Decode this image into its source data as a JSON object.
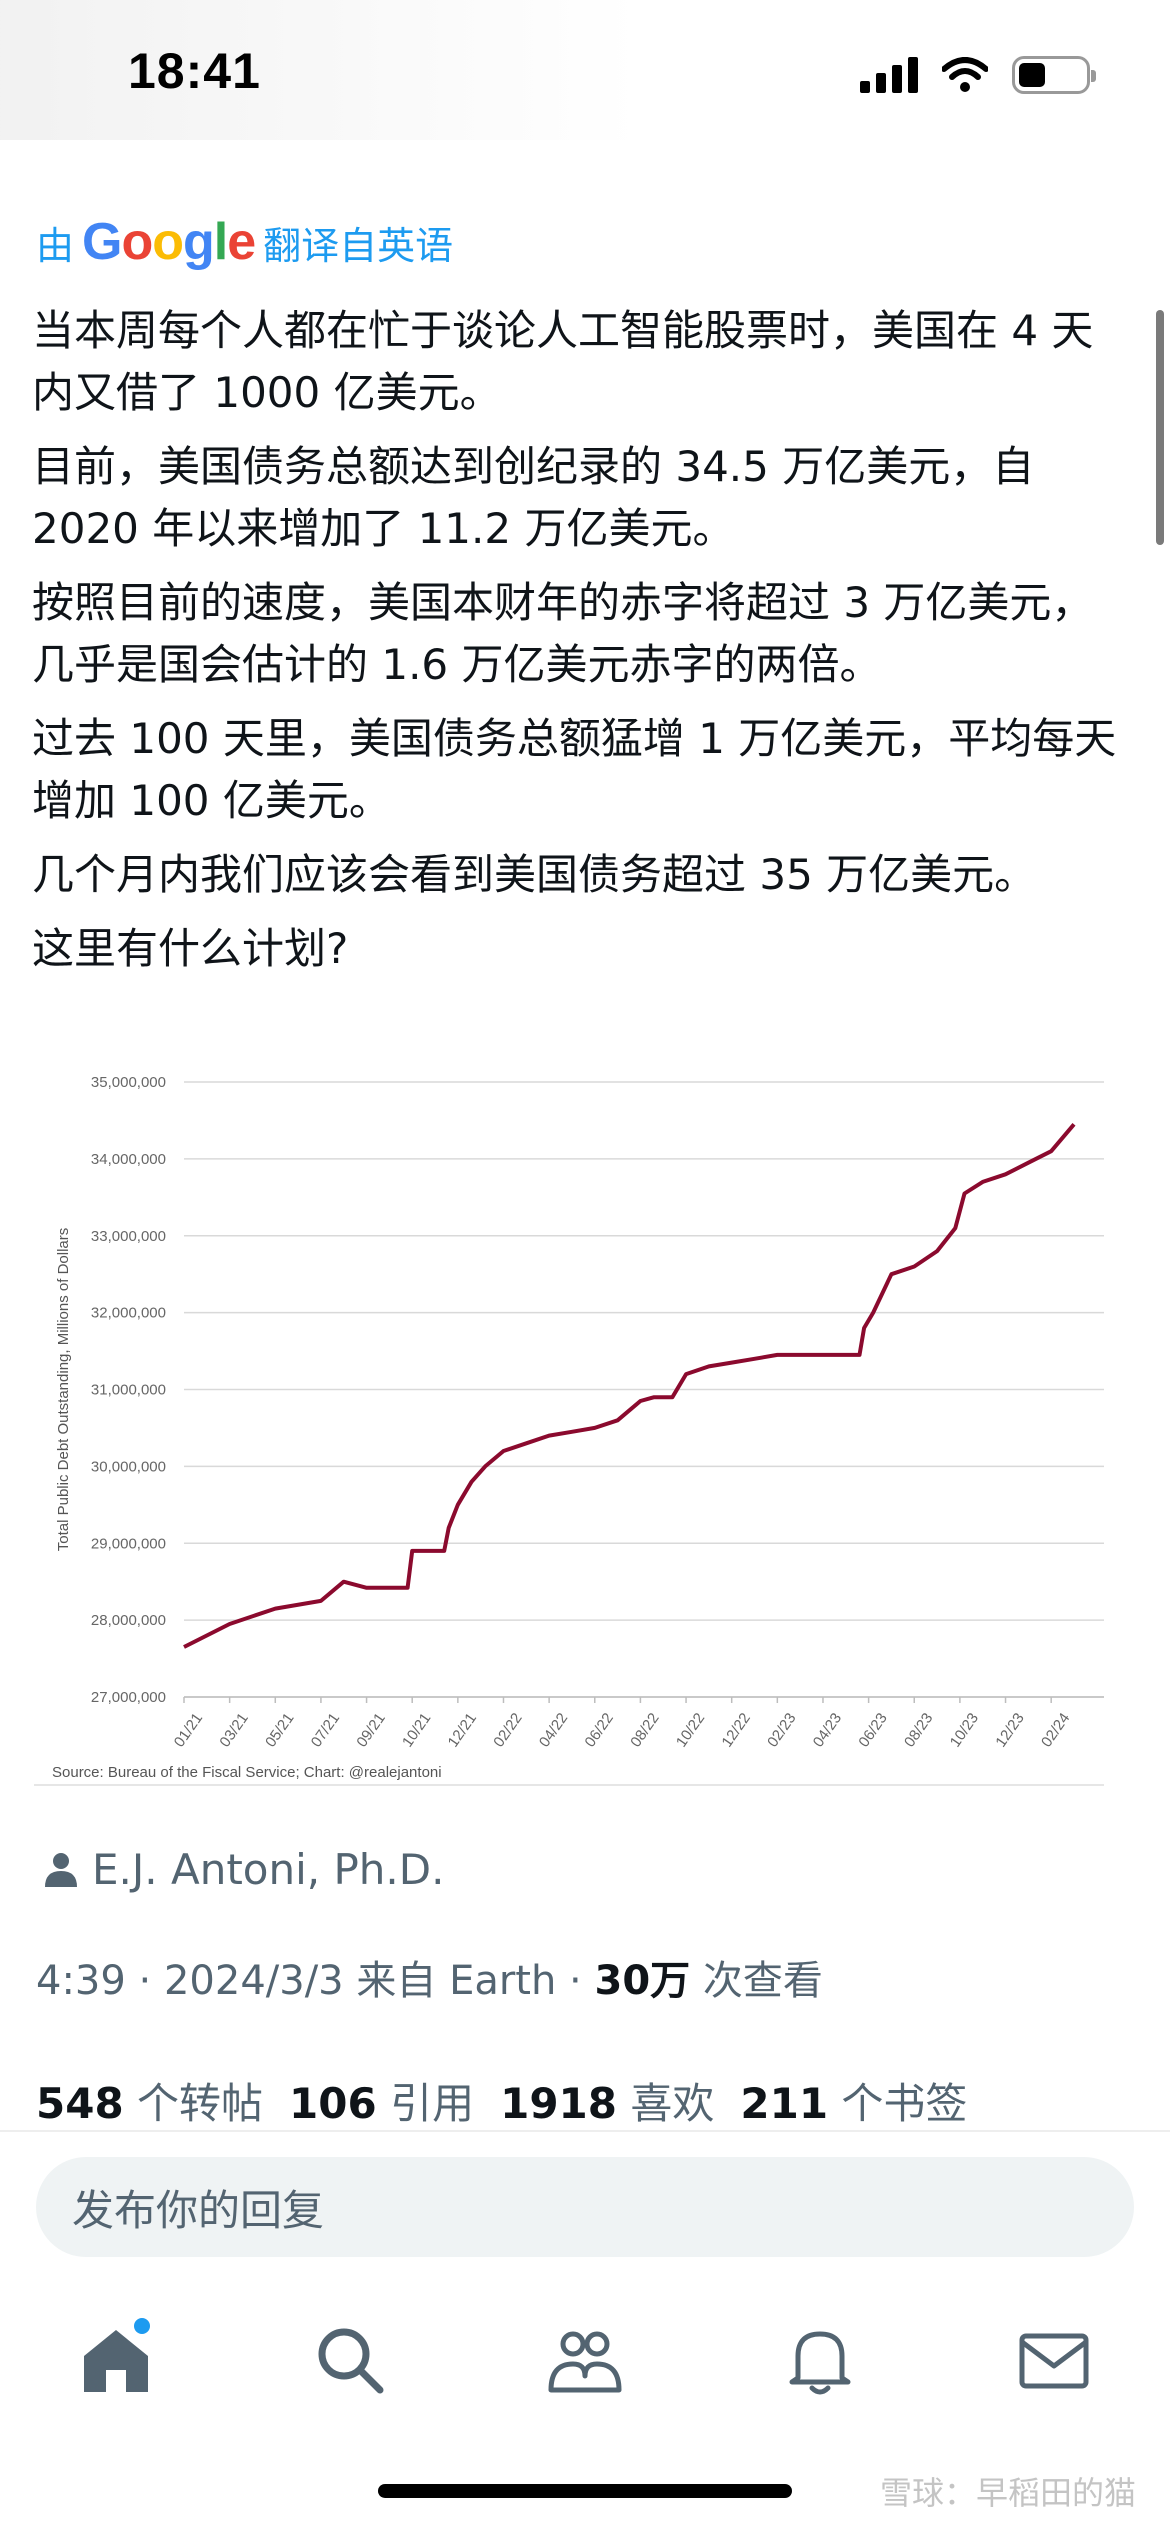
{
  "status_bar": {
    "time": "18:41"
  },
  "translate": {
    "prefix": "由",
    "brand": "Google",
    "suffix": "翻译自英语"
  },
  "tweet": {
    "paragraphs": [
      "当本周每个人都在忙于谈论人工智能股票时，美国在 4 天内又借了 1000 亿美元。",
      "目前，美国债务总额达到创纪录的 34.5 万亿美元，自 2020 年以来增加了 11.2 万亿美元。",
      "按照目前的速度，美国本财年的赤字将超过 3 万亿美元，几乎是国会估计的 1.6 万亿美元赤字的两倍。",
      "过去 100 天里，美国债务总额猛增 1 万亿美元，平均每天增加 100 亿美元。",
      "几个月内我们应该会看到美国债务超过 35 万亿美元。",
      "这里有什么计划?"
    ]
  },
  "chart_data": {
    "type": "line",
    "ylabel": "Total Public Debt Outstanding, Millions of Dollars",
    "source": "Source: Bureau of the Fiscal Service; Chart: @realejantoni",
    "ylim": [
      27000000,
      35000000
    ],
    "y_ticks": [
      "27,000,000",
      "28,000,000",
      "29,000,000",
      "30,000,000",
      "31,000,000",
      "32,000,000",
      "33,000,000",
      "34,000,000",
      "35,000,000"
    ],
    "x_ticks": [
      "01/21",
      "03/21",
      "05/21",
      "07/21",
      "09/21",
      "10/21",
      "12/21",
      "02/22",
      "04/22",
      "06/22",
      "08/22",
      "10/22",
      "12/22",
      "02/23",
      "04/23",
      "06/23",
      "08/23",
      "10/23",
      "12/23",
      "02/24"
    ],
    "grid": true,
    "color": "#8b0a2e",
    "series": [
      {
        "x": [
          0,
          1,
          2,
          3,
          3.5,
          4,
          4.9,
          5,
          5.7,
          5.8,
          6,
          6.3,
          6.6,
          7,
          7.5,
          8,
          8.5,
          9,
          9.5,
          10,
          10.3,
          10.7,
          11,
          11.5,
          12,
          12.5,
          13,
          13.5,
          14,
          14.8,
          14.9,
          15.1,
          15.5,
          16,
          16.5,
          16.9,
          17.1,
          17.5,
          18,
          18.5,
          19,
          19.5
        ],
        "y": [
          27650000,
          27950000,
          28150000,
          28250000,
          28500000,
          28420000,
          28420000,
          28900000,
          28900000,
          29200000,
          29500000,
          29800000,
          30000000,
          30200000,
          30300000,
          30400000,
          30450000,
          30500000,
          30600000,
          30850000,
          30900000,
          30900000,
          31200000,
          31300000,
          31350000,
          31400000,
          31450000,
          31450000,
          31450000,
          31450000,
          31800000,
          32000000,
          32500000,
          32600000,
          32800000,
          33100000,
          33550000,
          33700000,
          33800000,
          33950000,
          34100000,
          34450000
        ]
      }
    ]
  },
  "author": {
    "name": "E.J. Antoni, Ph.D."
  },
  "meta": {
    "time": "4:39",
    "date": "2024/3/3",
    "from": "来自 Earth",
    "views_count": "30万",
    "views_label": "次查看"
  },
  "stats": {
    "retweets_count": "548",
    "retweets_label": "个转帖",
    "quotes_count": "106",
    "quotes_label": "引用",
    "likes_count": "1918",
    "likes_label": "喜欢",
    "bookmarks_count": "211",
    "bookmarks_label": "个书签"
  },
  "reply": {
    "placeholder": "发布你的回复"
  },
  "nav": {
    "icons": [
      "home-icon",
      "search-icon",
      "communities-icon",
      "bell-icon",
      "mail-icon"
    ]
  },
  "watermark": "雪球：早稻田的猫"
}
